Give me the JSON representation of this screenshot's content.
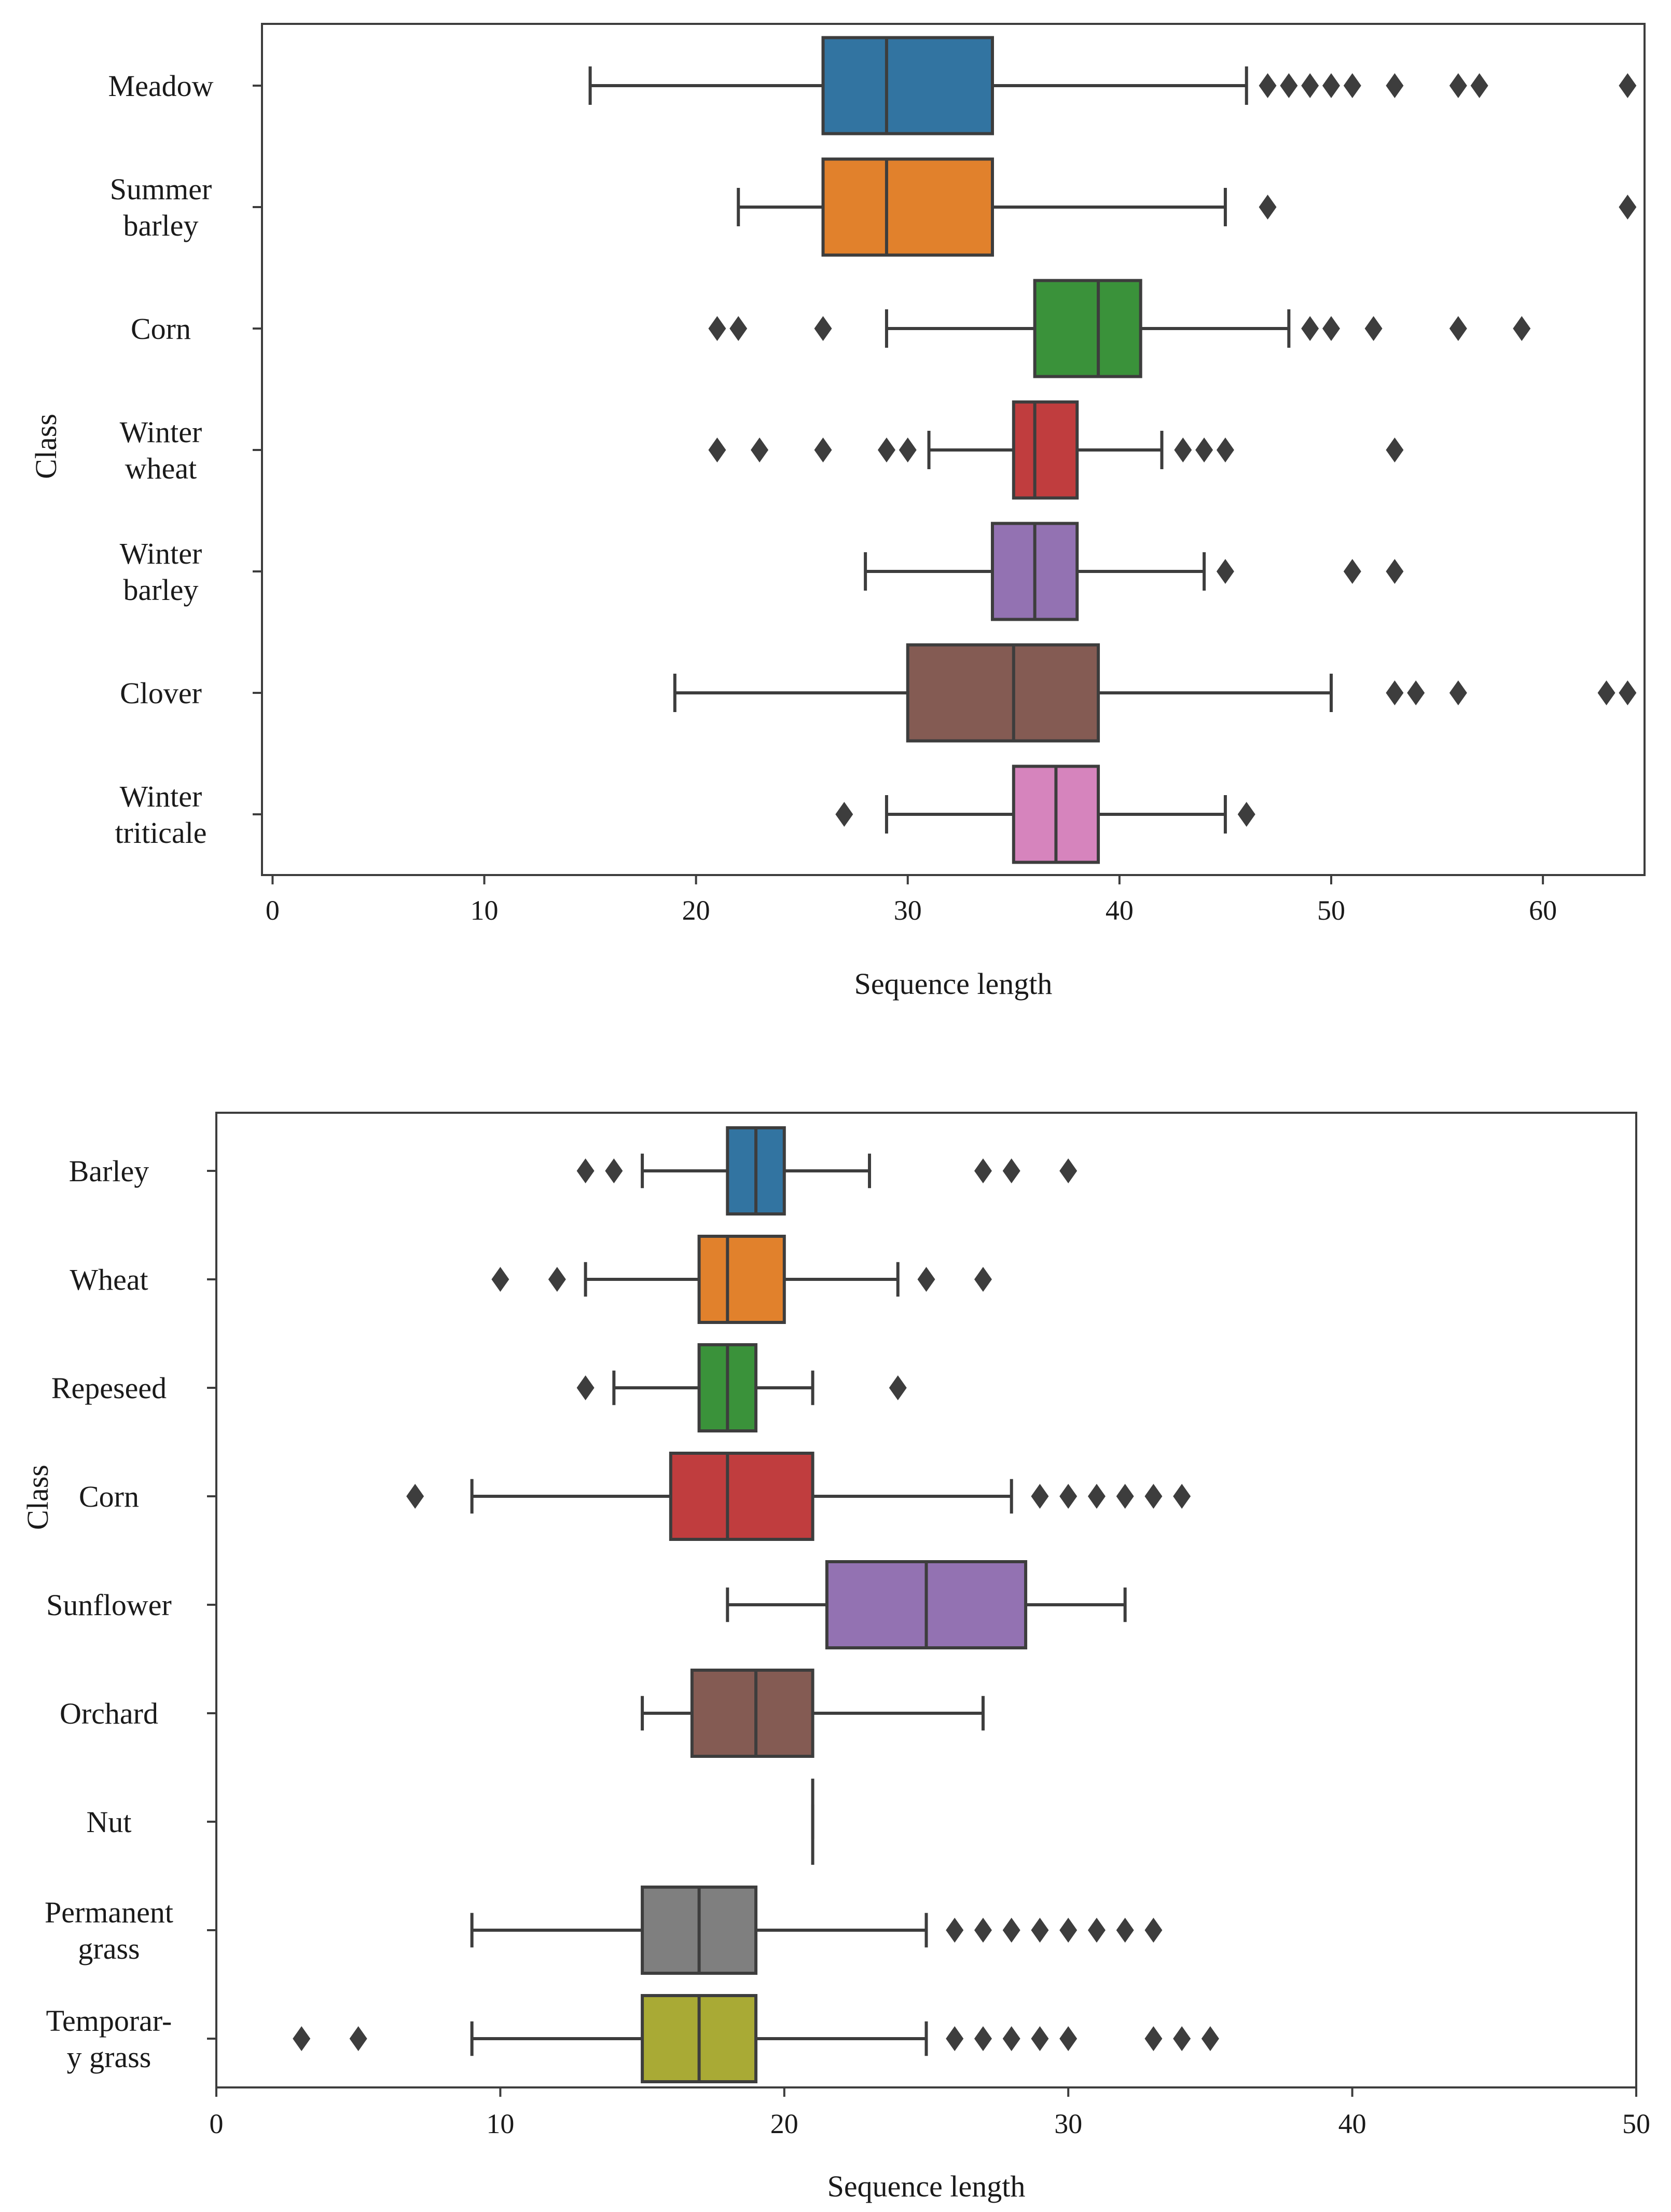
{
  "chart_data": [
    {
      "type": "boxplot",
      "orientation": "horizontal",
      "xlabel": "Sequence length",
      "ylabel": "Class",
      "xlim": [
        -0.5,
        64.8
      ],
      "xticks": [
        0,
        10,
        20,
        30,
        40,
        50,
        60
      ],
      "grid": false,
      "categories": [
        {
          "label": [
            "Meadow"
          ],
          "color": "#3274a1",
          "whislo": 15,
          "q1": 26,
          "median": 29,
          "q3": 34,
          "whishi": 46,
          "fliers": [
            47,
            48,
            49,
            50,
            51,
            53,
            56,
            57,
            64
          ]
        },
        {
          "label": [
            "Summer",
            "barley"
          ],
          "color": "#e1812c",
          "whislo": 22,
          "q1": 26,
          "median": 29,
          "q3": 34,
          "whishi": 45,
          "fliers": [
            47,
            64
          ]
        },
        {
          "label": [
            "Corn"
          ],
          "color": "#3a923a",
          "whislo": 29,
          "q1": 36,
          "median": 39,
          "q3": 41,
          "whishi": 48,
          "fliers": [
            21,
            22,
            26,
            49,
            50,
            52,
            56,
            59
          ]
        },
        {
          "label": [
            "Winter",
            "wheat"
          ],
          "color": "#c03d3e",
          "whislo": 31,
          "q1": 35,
          "median": 36,
          "q3": 38,
          "whishi": 42,
          "fliers": [
            21,
            23,
            26,
            29,
            30,
            43,
            44,
            45,
            53
          ]
        },
        {
          "label": [
            "Winter",
            "barley"
          ],
          "color": "#9372b2",
          "whislo": 28,
          "q1": 34,
          "median": 36,
          "q3": 38,
          "whishi": 44,
          "fliers": [
            45,
            51,
            53
          ]
        },
        {
          "label": [
            "Clover"
          ],
          "color": "#845b53",
          "whislo": 19,
          "q1": 30,
          "median": 35,
          "q3": 39,
          "whishi": 50,
          "fliers": [
            53,
            54,
            56,
            63,
            64
          ]
        },
        {
          "label": [
            "Winter",
            "triticale"
          ],
          "color": "#d684bd",
          "whislo": 29,
          "q1": 35,
          "median": 37,
          "q3": 39,
          "whishi": 45,
          "fliers": [
            27,
            46
          ]
        }
      ]
    },
    {
      "type": "boxplot",
      "orientation": "horizontal",
      "xlabel": "Sequence length",
      "ylabel": "Class",
      "xlim": [
        0,
        50
      ],
      "xticks": [
        0,
        10,
        20,
        30,
        40,
        50
      ],
      "grid": false,
      "categories": [
        {
          "label": [
            "Barley"
          ],
          "color": "#3274a1",
          "whislo": 15,
          "q1": 18,
          "median": 19,
          "q3": 20,
          "whishi": 23,
          "fliers": [
            13,
            14,
            27,
            28,
            30
          ]
        },
        {
          "label": [
            "Wheat"
          ],
          "color": "#e1812c",
          "whislo": 13,
          "q1": 17,
          "median": 18,
          "q3": 20,
          "whishi": 24,
          "fliers": [
            10,
            12,
            25,
            27
          ]
        },
        {
          "label": [
            "Repeseed"
          ],
          "color": "#3a923a",
          "whislo": 14,
          "q1": 17,
          "median": 18,
          "q3": 19,
          "whishi": 21,
          "fliers": [
            13,
            24
          ]
        },
        {
          "label": [
            "Corn"
          ],
          "color": "#c03d3e",
          "whislo": 9,
          "q1": 16,
          "median": 18,
          "q3": 21,
          "whishi": 28,
          "fliers": [
            7,
            29,
            30,
            31,
            32,
            33,
            34
          ]
        },
        {
          "label": [
            "Sunflower"
          ],
          "color": "#9372b2",
          "whislo": 18,
          "q1": 21.5,
          "median": 25,
          "q3": 28.5,
          "whishi": 32,
          "fliers": []
        },
        {
          "label": [
            "Orchard"
          ],
          "color": "#845b53",
          "whislo": 15,
          "q1": 16.75,
          "median": 19,
          "q3": 21,
          "whishi": 27,
          "fliers": []
        },
        {
          "label": [
            "Nut"
          ],
          "color": "#d684bd",
          "whislo": 21,
          "q1": 21,
          "median": 21,
          "q3": 21,
          "whishi": 21,
          "fliers": []
        },
        {
          "label": [
            "Permanent",
            "grass"
          ],
          "color": "#7f7f7f",
          "whislo": 9,
          "q1": 15,
          "median": 17,
          "q3": 19,
          "whishi": 25,
          "fliers": [
            26,
            27,
            28,
            29,
            30,
            31,
            32,
            33
          ]
        },
        {
          "label": [
            "Temporar-",
            "y grass"
          ],
          "color": "#a9aa35",
          "whislo": 9,
          "q1": 15,
          "median": 17,
          "q3": 19,
          "whishi": 25,
          "fliers": [
            3,
            5,
            26,
            27,
            28,
            29,
            30,
            33,
            34,
            35
          ]
        }
      ]
    }
  ]
}
